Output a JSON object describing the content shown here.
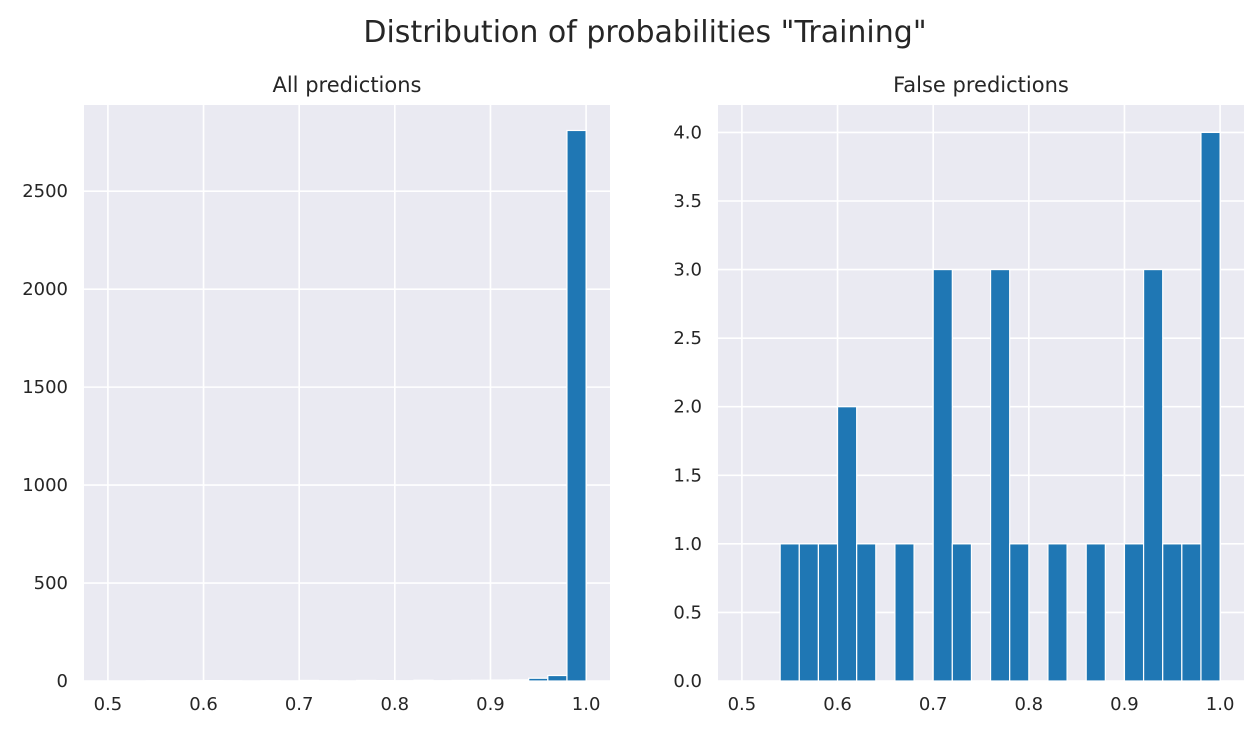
{
  "suptitle": "Distribution of probabilities \"Training\"",
  "colors": {
    "bar": "#1f77b4",
    "axes_bg": "#eaeaf2",
    "grid": "#ffffff"
  },
  "chart_data": [
    {
      "type": "bar",
      "title": "All predictions",
      "xlabel": "",
      "ylabel": "",
      "xlim": [
        0.475,
        1.025
      ],
      "ylim": [
        0,
        2940
      ],
      "grid": true,
      "xticks": [
        0.5,
        0.6,
        0.7,
        0.8,
        0.9,
        1.0
      ],
      "xtick_labels": [
        "0.5",
        "0.6",
        "0.7",
        "0.8",
        "0.9",
        "1.0"
      ],
      "yticks": [
        0,
        500,
        1000,
        1500,
        2000,
        2500
      ],
      "ytick_labels": [
        "0",
        "500",
        "1000",
        "1500",
        "2000",
        "2500"
      ],
      "bin_edges": [
        0.5,
        0.52,
        0.54,
        0.56,
        0.58,
        0.6,
        0.62,
        0.64,
        0.66,
        0.68,
        0.7,
        0.72,
        0.74,
        0.76,
        0.78,
        0.8,
        0.82,
        0.84,
        0.86,
        0.88,
        0.9,
        0.92,
        0.94,
        0.96,
        0.98,
        1.0
      ],
      "values": [
        0,
        0,
        1,
        1,
        1,
        2,
        1,
        0,
        1,
        0,
        3,
        1,
        0,
        3,
        2,
        1,
        4,
        1,
        3,
        4,
        5,
        6,
        14,
        28,
        2810
      ]
    },
    {
      "type": "bar",
      "title": "False predictions",
      "xlabel": "",
      "ylabel": "",
      "xlim": [
        0.475,
        1.025
      ],
      "ylim": [
        0,
        4.2
      ],
      "grid": true,
      "xticks": [
        0.5,
        0.6,
        0.7,
        0.8,
        0.9,
        1.0
      ],
      "xtick_labels": [
        "0.5",
        "0.6",
        "0.7",
        "0.8",
        "0.9",
        "1.0"
      ],
      "yticks": [
        0,
        0.5,
        1,
        1.5,
        2,
        2.5,
        3,
        3.5,
        4
      ],
      "ytick_labels": [
        "0.0",
        "0.5",
        "1.0",
        "1.5",
        "2.0",
        "2.5",
        "3.0",
        "3.5",
        "4.0"
      ],
      "bin_edges": [
        0.5,
        0.52,
        0.54,
        0.56,
        0.58,
        0.6,
        0.62,
        0.64,
        0.66,
        0.68,
        0.7,
        0.72,
        0.74,
        0.76,
        0.78,
        0.8,
        0.82,
        0.84,
        0.86,
        0.88,
        0.9,
        0.92,
        0.94,
        0.96,
        0.98,
        1.0
      ],
      "values": [
        0,
        0,
        1,
        1,
        1,
        2,
        1,
        0,
        1,
        0,
        3,
        1,
        0,
        3,
        1,
        0,
        1,
        0,
        1,
        0,
        1,
        3,
        1,
        1,
        4
      ]
    }
  ]
}
